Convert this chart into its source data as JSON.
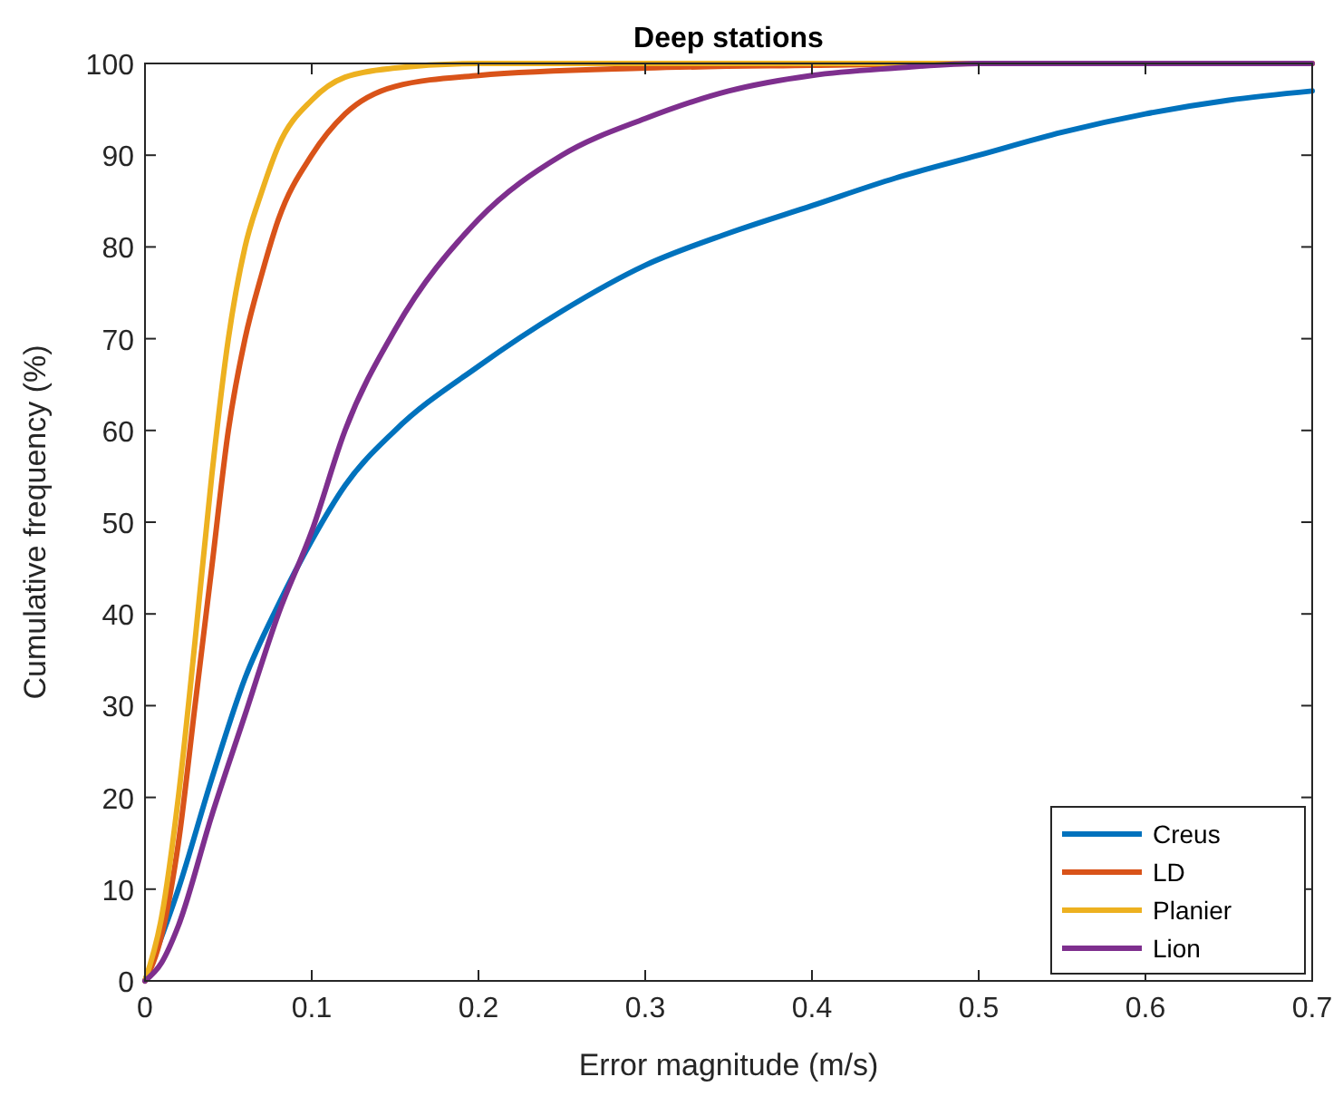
{
  "chart_data": {
    "type": "line",
    "title": "Deep stations",
    "xlabel": "Error magnitude (m/s)",
    "ylabel": "Cumulative frequency (%)",
    "xlim": [
      0,
      0.7
    ],
    "ylim": [
      0,
      100
    ],
    "xticks": [
      0,
      0.1,
      0.2,
      0.3,
      0.4,
      0.5,
      0.6,
      0.7
    ],
    "yticks": [
      0,
      10,
      20,
      30,
      40,
      50,
      60,
      70,
      80,
      90,
      100
    ],
    "grid": false,
    "legend": "bottom right",
    "marker": "none",
    "line_style": "solid",
    "series": [
      {
        "name": "Creus",
        "color": "#0072bd",
        "x": [
          0,
          0.02,
          0.04,
          0.06,
          0.08,
          0.1,
          0.12,
          0.15,
          0.2,
          0.25,
          0.3,
          0.35,
          0.4,
          0.45,
          0.5,
          0.55,
          0.6,
          0.65,
          0.7
        ],
        "values": [
          0,
          10,
          22,
          33,
          41,
          48,
          54,
          60,
          67,
          73,
          78,
          81.5,
          84.5,
          87.5,
          90,
          92.5,
          94.5,
          96,
          97
        ]
      },
      {
        "name": "LD",
        "color": "#d95319",
        "x": [
          0,
          0.01,
          0.02,
          0.03,
          0.04,
          0.05,
          0.06,
          0.07,
          0.08,
          0.1,
          0.12,
          0.15,
          0.2,
          0.3,
          0.4,
          0.5,
          0.7
        ],
        "values": [
          0,
          5,
          15,
          30,
          45,
          60,
          70,
          77,
          83,
          90,
          94.5,
          97.5,
          98.7,
          99.5,
          99.8,
          100,
          100
        ]
      },
      {
        "name": "Planier",
        "color": "#edb120",
        "x": [
          0,
          0.01,
          0.02,
          0.03,
          0.04,
          0.05,
          0.06,
          0.07,
          0.08,
          0.1,
          0.12,
          0.15,
          0.2,
          0.7
        ],
        "values": [
          0,
          7,
          20,
          37,
          55,
          70,
          80,
          86,
          91,
          96,
          98.5,
          99.5,
          100,
          100
        ]
      },
      {
        "name": "Lion",
        "color": "#7e2f8e",
        "x": [
          0,
          0.01,
          0.02,
          0.04,
          0.06,
          0.08,
          0.1,
          0.12,
          0.15,
          0.2,
          0.25,
          0.3,
          0.35,
          0.4,
          0.45,
          0.5,
          0.7
        ],
        "values": [
          0,
          2,
          6,
          18,
          29,
          40,
          49,
          60,
          71,
          83,
          90,
          94,
          97,
          98.7,
          99.5,
          100,
          100
        ]
      }
    ]
  }
}
